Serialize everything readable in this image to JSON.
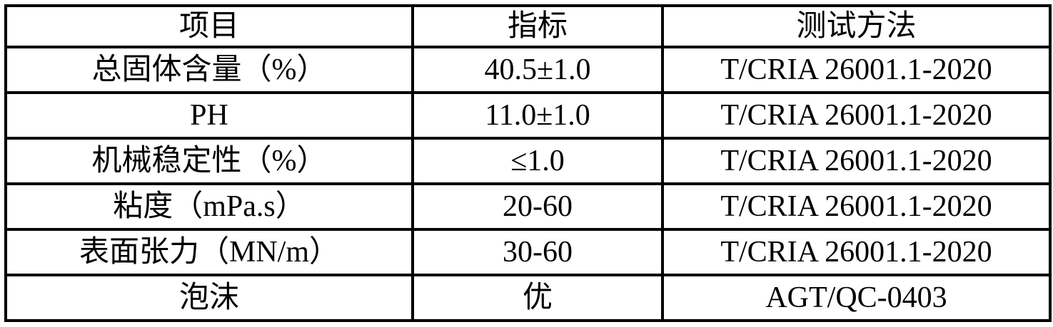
{
  "colors": {
    "border": "#000000",
    "text": "#000000",
    "background": "#ffffff"
  },
  "table": {
    "columns": [
      {
        "label": "项目"
      },
      {
        "label": "指标"
      },
      {
        "label": "测试方法"
      }
    ],
    "rows": [
      {
        "item": "总固体含量（%）",
        "value": "40.5±1.0",
        "method": "T/CRIA 26001.1-2020"
      },
      {
        "item": "PH",
        "value": "11.0±1.0",
        "method": "T/CRIA 26001.1-2020"
      },
      {
        "item": "机械稳定性（%）",
        "value": "≤1.0",
        "method": "T/CRIA 26001.1-2020"
      },
      {
        "item": "粘度（mPa.s）",
        "value": "20-60",
        "method": "T/CRIA 26001.1-2020"
      },
      {
        "item": "表面张力（MN/m）",
        "value": "30-60",
        "method": "T/CRIA 26001.1-2020"
      },
      {
        "item": "泡沫",
        "value": "优",
        "method": "AGT/QC-0403"
      }
    ]
  }
}
